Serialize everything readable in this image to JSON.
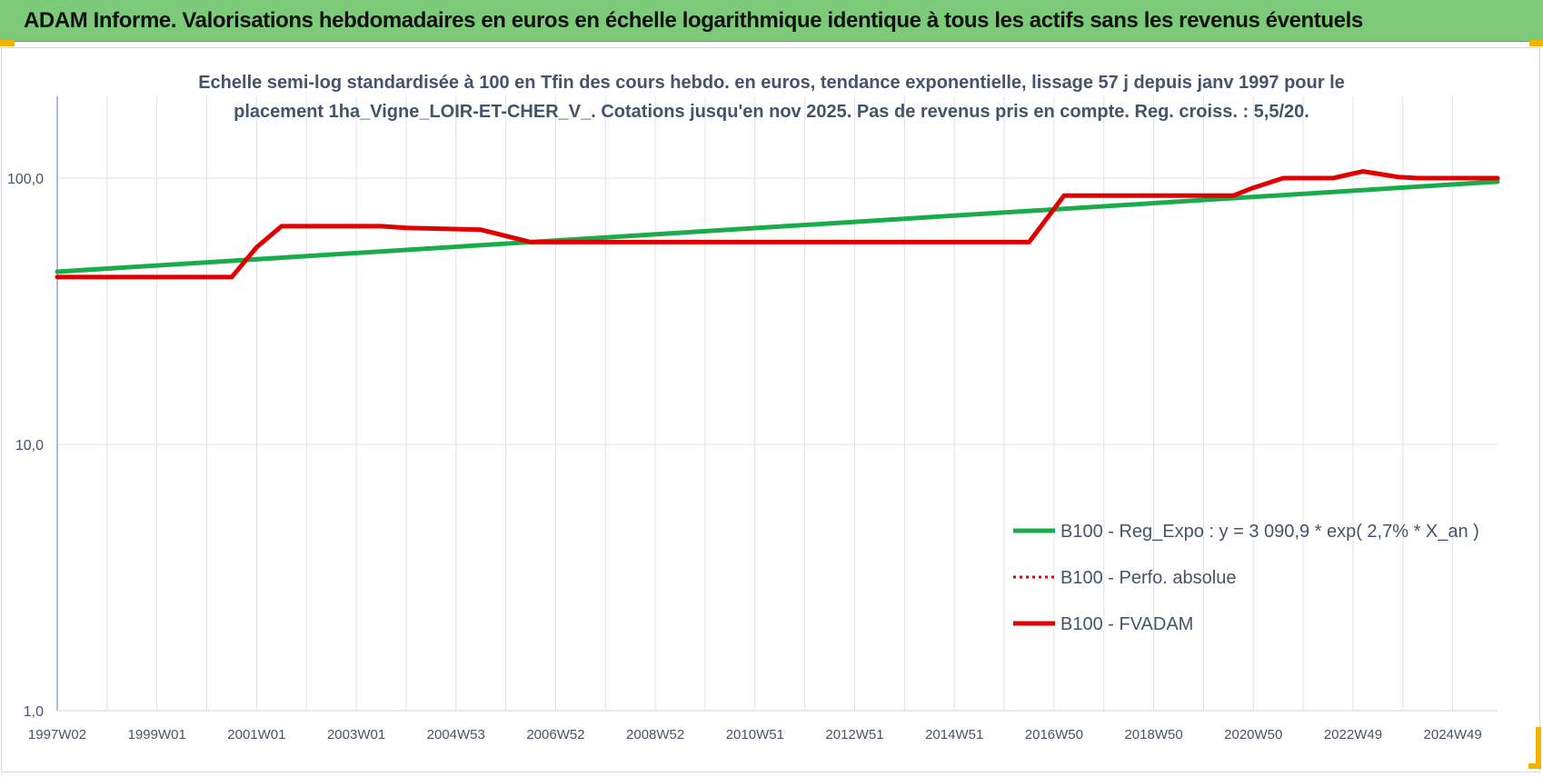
{
  "header": {
    "title": "ADAM Informe. Valorisations hebdomadaires en euros en échelle logarithmique identique à tous les actifs sans les revenus éventuels"
  },
  "colors": {
    "header_bg": "#7dcb7a",
    "trend": "#1aab4a",
    "perf": "#e00000",
    "fvadam": "#e00000",
    "grid": "#dde3ea",
    "axis": "#5b7fb0",
    "text": "#44546a"
  },
  "chart_data": {
    "type": "line",
    "title_lines": [
      "Echelle semi-log standardisée à 100 en Tfin des cours hebdo. en euros, tendance exponentielle, lissage 57 j depuis janv 1997 pour le",
      "placement 1ha_Vigne_LOIR-ET-CHER_V_. Cotations jusqu'en nov 2025.  Pas de revenus pris en compte. Reg. croiss. : 5,5/20."
    ],
    "y_scale": "log",
    "ylim": [
      1,
      200
    ],
    "y_ticks": [
      {
        "value": 1,
        "label": "1,0"
      },
      {
        "value": 10,
        "label": "10,0"
      },
      {
        "value": 100,
        "label": "100,0"
      }
    ],
    "x_range": [
      1997.0,
      2025.9
    ],
    "x_ticks": [
      {
        "value": 1997.0,
        "label": "1997W02"
      },
      {
        "value": 1999.0,
        "label": "1999W01"
      },
      {
        "value": 2001.0,
        "label": "2001W01"
      },
      {
        "value": 2003.0,
        "label": "2003W01"
      },
      {
        "value": 2005.0,
        "label": "2004W53"
      },
      {
        "value": 2007.0,
        "label": "2006W52"
      },
      {
        "value": 2009.0,
        "label": "2008W52"
      },
      {
        "value": 2011.0,
        "label": "2010W51"
      },
      {
        "value": 2013.0,
        "label": "2012W51"
      },
      {
        "value": 2015.0,
        "label": "2014W51"
      },
      {
        "value": 2017.0,
        "label": "2016W50"
      },
      {
        "value": 2019.0,
        "label": "2018W50"
      },
      {
        "value": 2021.0,
        "label": "2020W50"
      },
      {
        "value": 2023.0,
        "label": "2022W49"
      },
      {
        "value": 2025.0,
        "label": "2024W49"
      }
    ],
    "legend_position": "bottom-right",
    "series": [
      {
        "name": "B100 - Reg_Expo : y = 3 090,9 * exp( 2,7% *  X_an )",
        "style": "solid-green",
        "x": [
          1997.0,
          2025.9
        ],
        "y": [
          44.5,
          97
        ]
      },
      {
        "name": "B100 - Perfo. absolue",
        "style": "dotted-red",
        "x": [
          1997.0,
          2000.5,
          2001.0,
          2001.5,
          2003.5,
          2004.0,
          2005.5,
          2006.5,
          2016.5,
          2017.2,
          2020.6,
          2021.0,
          2021.6,
          2022.6,
          2023.2,
          2023.9,
          2024.3,
          2025.9
        ],
        "y": [
          42.5,
          42.5,
          55,
          66,
          66,
          65,
          64,
          57.5,
          57.5,
          86,
          86,
          92,
          100,
          100,
          106,
          101,
          100,
          100
        ]
      },
      {
        "name": "B100 - FVADAM",
        "style": "solid-red",
        "x": [
          1997.0,
          2000.5,
          2001.0,
          2001.5,
          2003.5,
          2004.0,
          2005.5,
          2006.5,
          2016.5,
          2017.2,
          2020.6,
          2021.0,
          2021.6,
          2022.6,
          2023.2,
          2023.9,
          2024.3,
          2025.9
        ],
        "y": [
          42.5,
          42.5,
          55,
          66,
          66,
          65,
          64,
          57.5,
          57.5,
          86,
          86,
          92,
          100,
          100,
          106,
          101,
          100,
          100
        ]
      }
    ]
  }
}
